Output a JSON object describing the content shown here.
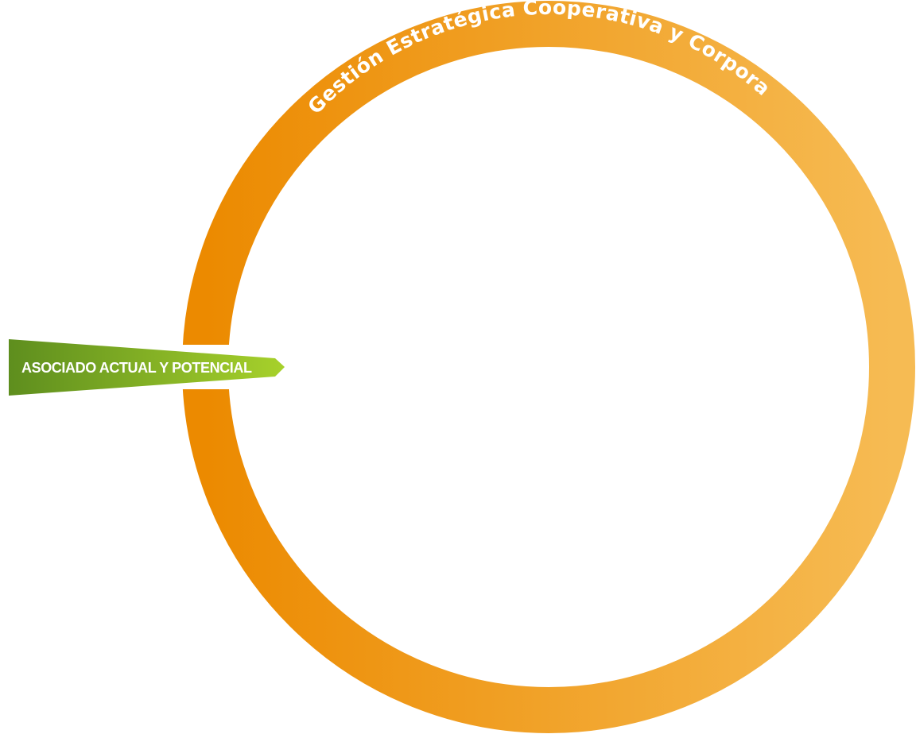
{
  "diagram": {
    "ring": {
      "title": "Gestión Estratégica Cooperativa y Corporativa",
      "gradient_start": "#EC8A00",
      "gradient_end": "#F6BB53"
    },
    "arrow": {
      "label": "ASOCIADO ACTUAL Y POTENCIAL",
      "gradient_start": "#5E8E1E",
      "gradient_end": "#A7D12B"
    }
  }
}
